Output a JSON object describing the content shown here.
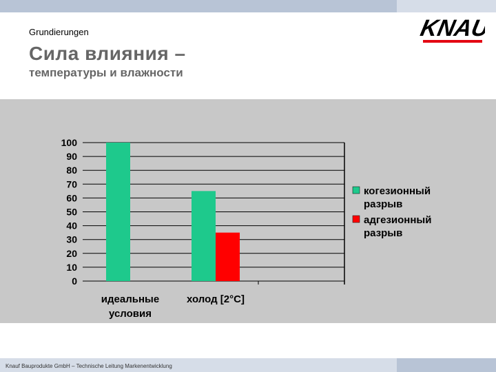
{
  "header": {
    "section_label": "Grundierungen",
    "title": "Сила влияния –",
    "subtitle": "температуры и влажности",
    "logo_text": "KNAUF"
  },
  "footer": {
    "text": "Knauf Bauprodukte GmbH – Technische Leitung Markenentwicklung"
  },
  "colors": {
    "cohesive": "#1ec98c",
    "adhesive": "#ff0000",
    "logo_blue": "#1a5fb4",
    "logo_red": "#e30613"
  },
  "chart_data": {
    "type": "bar",
    "categories": [
      "идеальные условия",
      "холод [2°C]"
    ],
    "category_lines": [
      [
        "идеальные",
        "условия"
      ],
      [
        "холод [2°C]"
      ]
    ],
    "series": [
      {
        "name": "когезионный разрыв",
        "legend_lines": [
          "когезионный",
          "разрыв"
        ],
        "values": [
          100,
          65
        ]
      },
      {
        "name": "адгезионный разрыв",
        "legend_lines": [
          "адгезионный",
          "разрыв"
        ],
        "values": [
          null,
          35
        ]
      }
    ],
    "ylim": [
      0,
      100
    ],
    "yticks": [
      0,
      10,
      20,
      30,
      40,
      50,
      60,
      70,
      80,
      90,
      100
    ],
    "grid": true,
    "legend": "right"
  }
}
